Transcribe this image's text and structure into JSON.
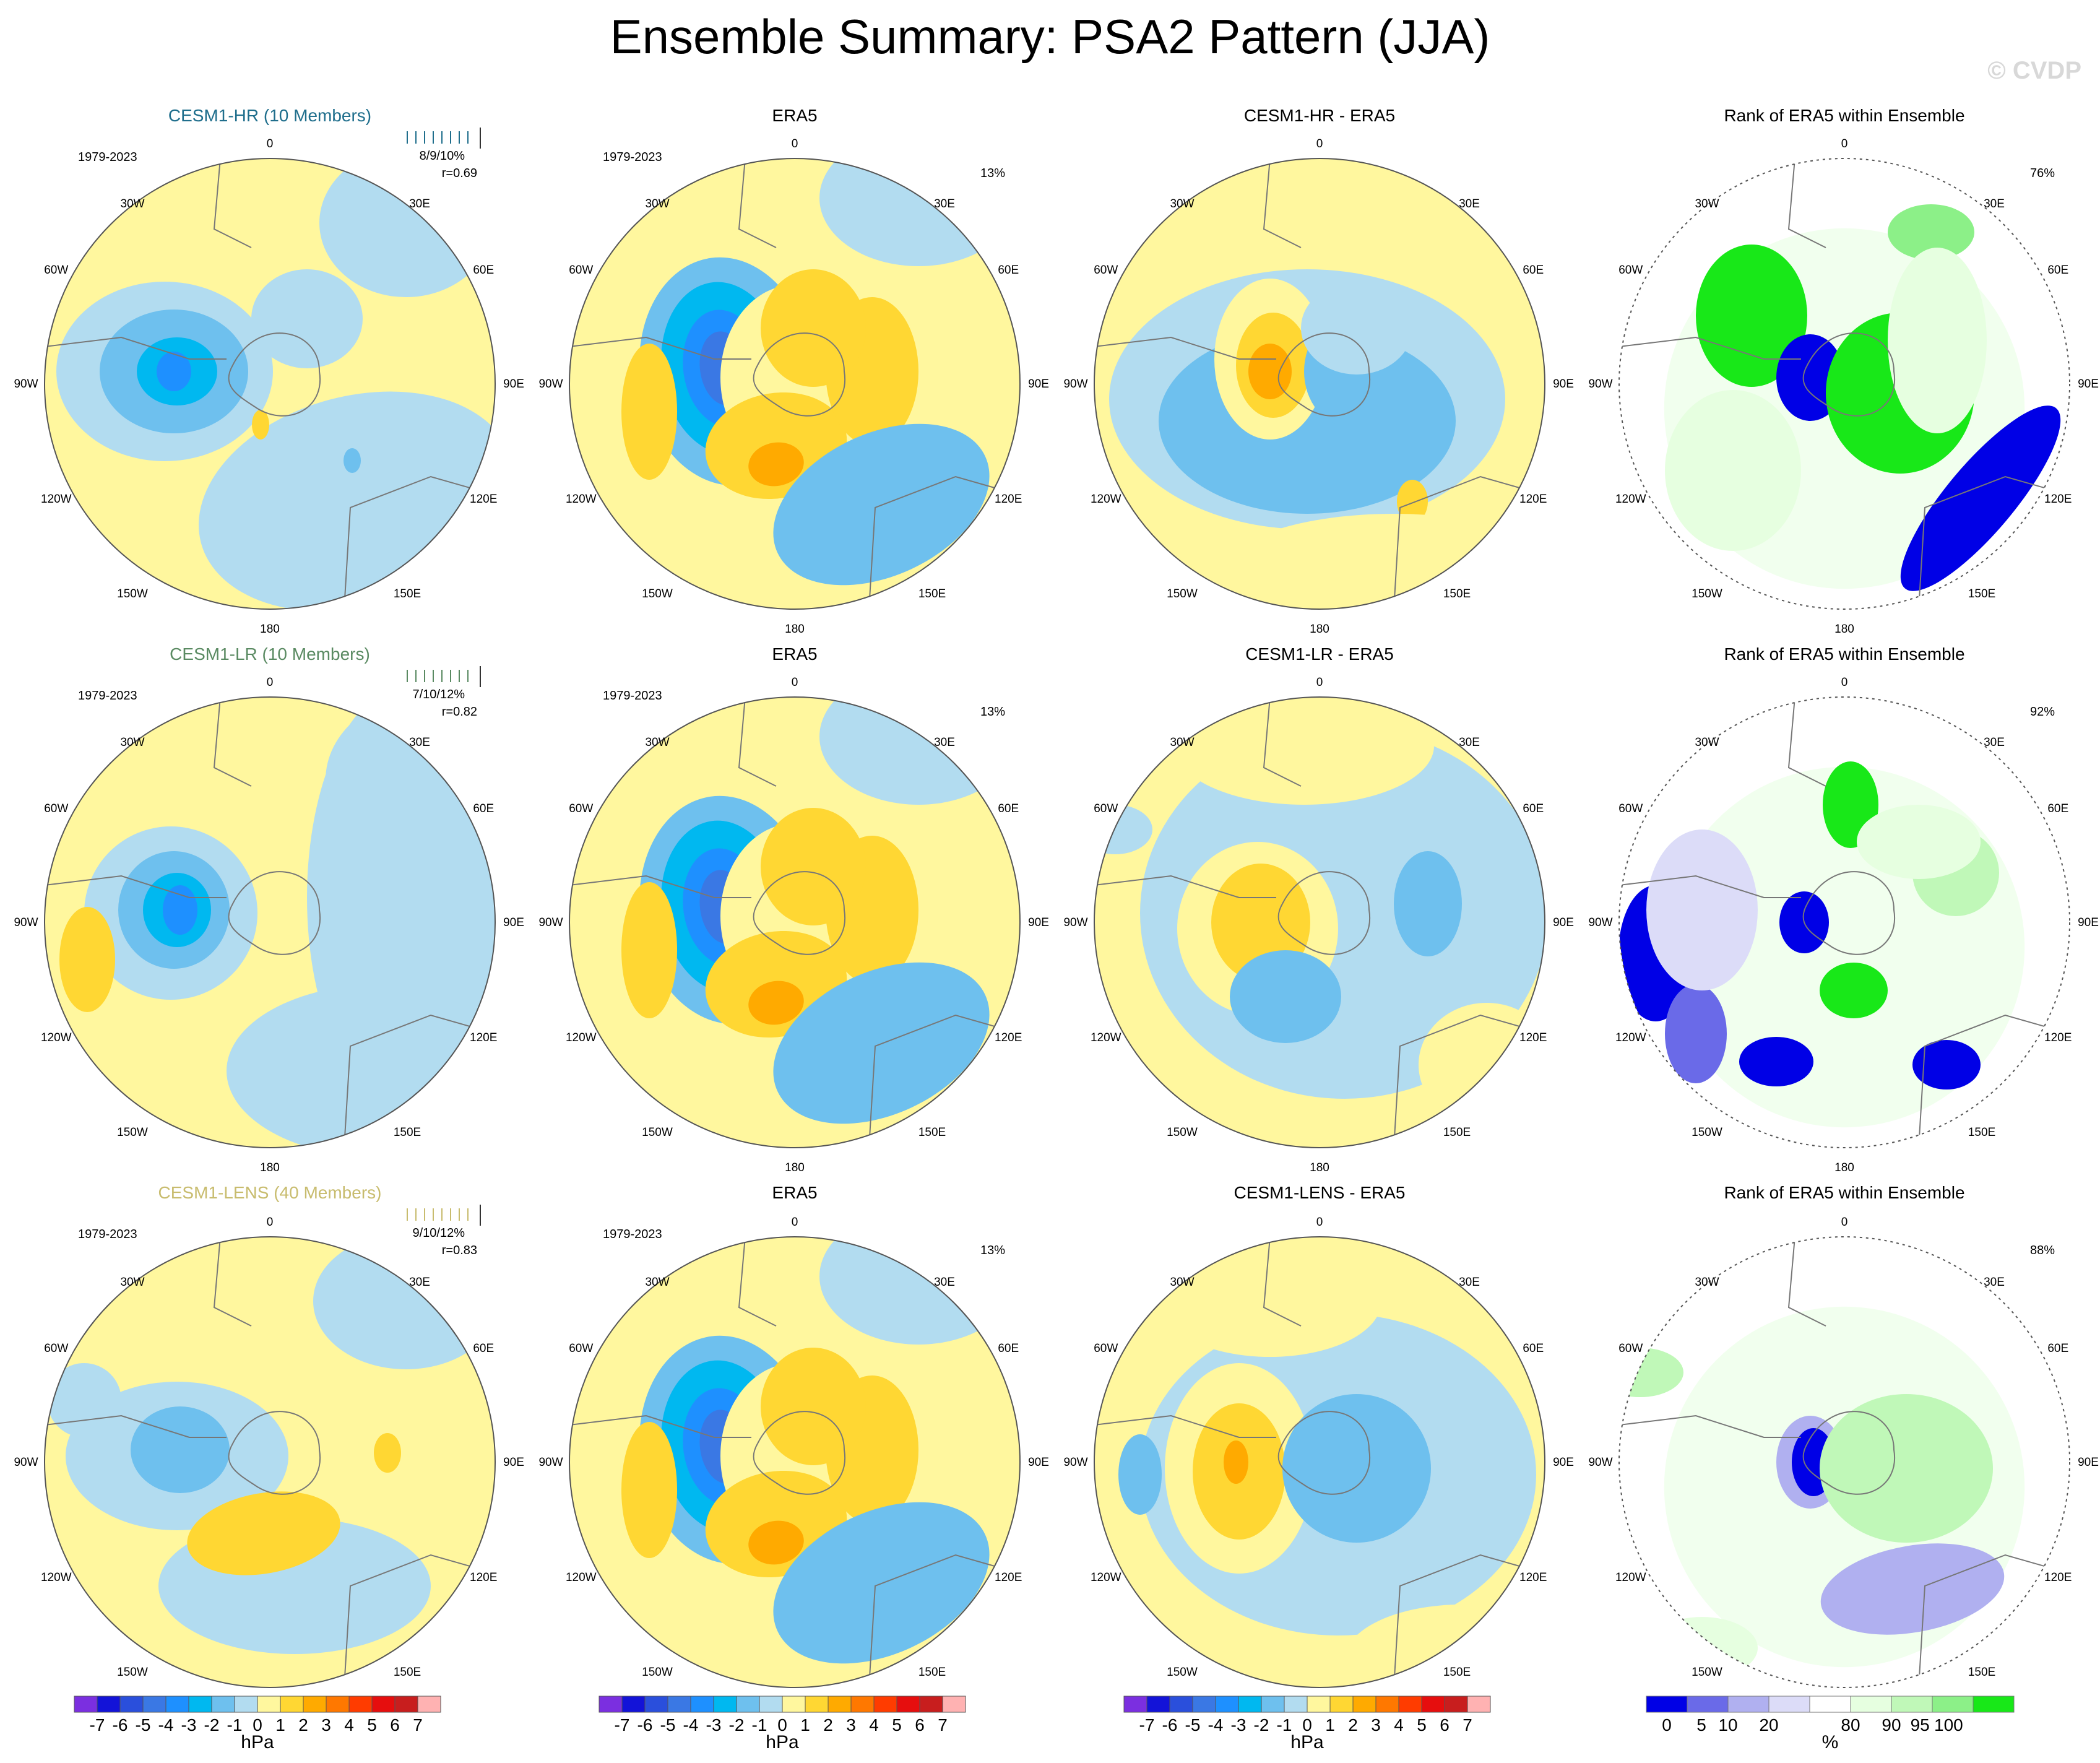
{
  "title": "Ensemble Summary: PSA2 Pattern (JJA)",
  "copyright": "© CVDP",
  "units": {
    "hpa": "hPa",
    "pct": "%"
  },
  "lon_labels": [
    "0",
    "30E",
    "60E",
    "90E",
    "120E",
    "150E",
    "180",
    "150W",
    "120W",
    "90W",
    "60W",
    "30W"
  ],
  "colors": {
    "contour": [
      "#7b2fe0",
      "#1313d8",
      "#2a4fdc",
      "#3a78e4",
      "#1e90ff",
      "#00b8f0",
      "#6ec0ee",
      "#b2dcf0",
      "#fff79e",
      "#ffd733",
      "#ffaa00",
      "#ff7800",
      "#ff3c00",
      "#e60e0e",
      "#c81e1e",
      "#ffb2b2"
    ],
    "rank": [
      "#0000e6",
      "#6a6ae8",
      "#b0b0f0",
      "#dcdcf8",
      "#ffffff",
      "#e6ffe0",
      "#c0f8b8",
      "#8cf088",
      "#18e818"
    ],
    "neg_fill": "#b2dcf0",
    "pos_fill": "#fff79e",
    "hr_title": "#1f6e8c",
    "lr_title": "#5a8a62",
    "lens_title": "#c8bc6e"
  },
  "rows": [
    {
      "model": {
        "title": "CESM1-HR (10 Members)",
        "years": "1979-2023",
        "stat1": "8/9/10%",
        "stat2": "r=0.69"
      },
      "obs": {
        "title": "ERA5",
        "years": "1979-2023",
        "pct": "13%"
      },
      "diff": {
        "title": "CESM1-HR - ERA5"
      },
      "rank": {
        "title": "Rank of ERA5 within Ensemble",
        "pct": "76%"
      }
    },
    {
      "model": {
        "title": "CESM1-LR (10 Members)",
        "years": "1979-2023",
        "stat1": "7/10/12%",
        "stat2": "r=0.82"
      },
      "obs": {
        "title": "ERA5",
        "years": "1979-2023",
        "pct": "13%"
      },
      "diff": {
        "title": "CESM1-LR - ERA5"
      },
      "rank": {
        "title": "Rank of ERA5 within Ensemble",
        "pct": "92%"
      }
    },
    {
      "model": {
        "title": "CESM1-LENS (40 Members)",
        "years": "1979-2023",
        "stat1": "9/10/12%",
        "stat2": "r=0.83"
      },
      "obs": {
        "title": "ERA5",
        "years": "1979-2023",
        "pct": "13%"
      },
      "diff": {
        "title": "CESM1-LENS - ERA5"
      },
      "rank": {
        "title": "Rank of ERA5 within Ensemble",
        "pct": "88%"
      }
    }
  ],
  "chart_data": {
    "type": "heatmap",
    "title": "Ensemble Summary: PSA2 Pattern (JJA)",
    "projection": "south polar stereographic",
    "variable": "sea level pressure regression",
    "contour_levels_hpa": [
      "-7",
      "-6",
      "-5",
      "-4",
      "-3",
      "-2",
      "-1",
      "0",
      "1",
      "2",
      "3",
      "4",
      "5",
      "6",
      "7"
    ],
    "contour_units": "hPa",
    "rank_levels_pct": [
      "0",
      "5",
      "10",
      "20",
      "80",
      "90",
      "95",
      "100"
    ],
    "rank_units": "%",
    "panels": [
      {
        "name": "CESM1-HR (10 Members)",
        "pattern_corr": 0.69,
        "pct_variance": "8/9/10%"
      },
      {
        "name": "ERA5",
        "pct_variance": "13%"
      },
      {
        "name": "CESM1-HR - ERA5"
      },
      {
        "name": "Rank of ERA5 within Ensemble",
        "pct_within": "76%"
      },
      {
        "name": "CESM1-LR (10 Members)",
        "pattern_corr": 0.82,
        "pct_variance": "7/10/12%"
      },
      {
        "name": "CESM1-LR - ERA5"
      },
      {
        "name": "Rank of ERA5 within Ensemble",
        "pct_within": "92%"
      },
      {
        "name": "CESM1-LENS (40 Members)",
        "pattern_corr": 0.83,
        "pct_variance": "9/10/12%"
      },
      {
        "name": "CESM1-LENS - ERA5"
      },
      {
        "name": "Rank of ERA5 within Ensemble",
        "pct_within": "88%"
      }
    ]
  }
}
